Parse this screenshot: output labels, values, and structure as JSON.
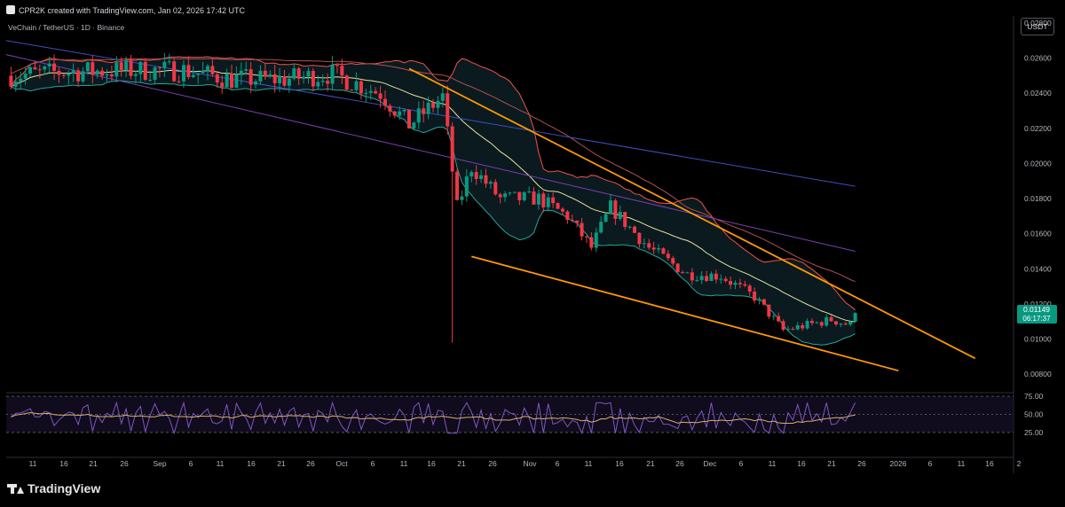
{
  "header": {
    "created": "CPR2K created with TradingView.com, Jan 02, 2026 17:42 UTC"
  },
  "symbol": {
    "title": "VeChain / TetherUS · 1D · Binance"
  },
  "currency_button": "USDT",
  "price_tag": {
    "price": "0.01149",
    "countdown": "06:17:37",
    "color": "#089981",
    "value": 0.01149
  },
  "footer": {
    "brand": "TradingView"
  },
  "colors": {
    "up": "#089981",
    "down": "#f23645",
    "wedge": "#ff9800",
    "bb_upper": "#ef5350",
    "bb_lower": "#26a69a",
    "bb_fill": "#0d2329",
    "ma_fast": "#e8e2a0",
    "ma_mid": "#b05050",
    "ma_slow1": "#7b3fb3",
    "ma_slow2": "#3f4fbf",
    "rsi": "#7e57c2",
    "rsi_ma": "#d7b36a"
  },
  "icons": [
    "tradingview-logo-icon"
  ],
  "chart_data": {
    "type": "candlestick",
    "title": "VeChain / TetherUS · 1D · Binance",
    "y_ticks": [
      "0.02800",
      "0.02600",
      "0.02400",
      "0.02200",
      "0.02000",
      "0.01800",
      "0.01600",
      "0.01400",
      "0.01200",
      "0.01000",
      "0.00800"
    ],
    "ylim": [
      0.0072,
      0.0284
    ],
    "x_tick_labels": [
      "11",
      "16",
      "21",
      "26",
      "Sep",
      "6",
      "11",
      "16",
      "21",
      "26",
      "Oct",
      "6",
      "11",
      "16",
      "21",
      "26",
      "Nov",
      "6",
      "11",
      "16",
      "21",
      "26",
      "Dec",
      "6",
      "11",
      "16",
      "21",
      "26",
      "2026",
      "6",
      "11",
      "16",
      "2"
    ],
    "x_range": {
      "start": "2025-07-09",
      "end": "2026-02-04"
    },
    "candles_keypoints": [
      [
        "2025-07-10",
        0.025
      ],
      [
        "2025-07-20",
        0.0252
      ],
      [
        "2025-08-01",
        0.0253
      ],
      [
        "2025-08-15",
        0.0253
      ],
      [
        "2025-08-25",
        0.0248
      ],
      [
        "2025-09-05",
        0.0248
      ],
      [
        "2025-09-15",
        0.0251
      ],
      [
        "2025-09-25",
        0.024
      ],
      [
        "2025-10-01",
        0.0222
      ],
      [
        "2025-10-08",
        0.0238
      ],
      [
        "2025-10-11",
        0.0175
      ],
      [
        "2025-10-14",
        0.0198
      ],
      [
        "2025-10-20",
        0.018
      ],
      [
        "2025-10-28",
        0.018
      ],
      [
        "2025-11-03",
        0.017
      ],
      [
        "2025-11-08",
        0.0152
      ],
      [
        "2025-11-12",
        0.0175
      ],
      [
        "2025-11-20",
        0.0152
      ],
      [
        "2025-11-28",
        0.0137
      ],
      [
        "2025-12-05",
        0.0136
      ],
      [
        "2025-12-12",
        0.0124
      ],
      [
        "2025-12-18",
        0.0105
      ],
      [
        "2025-12-23",
        0.0108
      ],
      [
        "2025-12-28",
        0.0111
      ],
      [
        "2026-01-01",
        0.0108
      ],
      [
        "2026-01-02",
        0.01149
      ]
    ],
    "wick_low": {
      "date": "2025-10-10",
      "value": 0.0098
    },
    "wedge_upper": [
      [
        "2025-10-01",
        0.0254
      ],
      [
        "2026-01-27",
        0.0089
      ]
    ],
    "wedge_lower": [
      [
        "2025-10-14",
        0.0147
      ],
      [
        "2026-01-11",
        0.0082
      ]
    ],
    "rsi": {
      "levels": [
        "75.00",
        "50.00",
        "25.00"
      ],
      "ylim": [
        20,
        80
      ]
    },
    "legend": "none",
    "grid": false
  }
}
